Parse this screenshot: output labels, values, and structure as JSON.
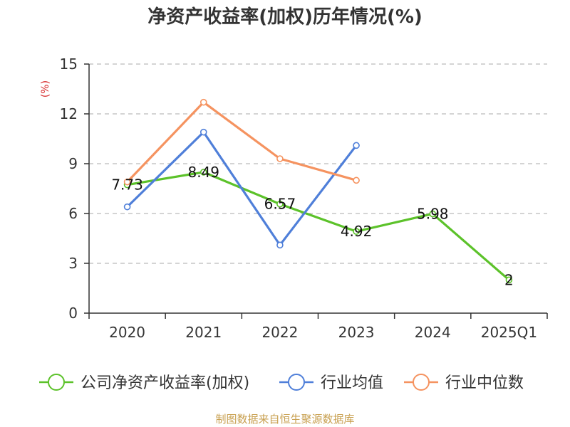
{
  "chart_data": {
    "type": "line",
    "title": "净资产收益率(加权)历年情况(%)",
    "ylabel": "(%)",
    "categories": [
      "2020",
      "2021",
      "2022",
      "2023",
      "2024",
      "2025Q1"
    ],
    "ylim": [
      0,
      15
    ],
    "yticks": [
      "0",
      "3",
      "6",
      "9",
      "12",
      "15"
    ],
    "grid": true,
    "legend_position": "bottom",
    "series": [
      {
        "name": "公司净资产收益率(加权)",
        "color": "#5cc22a",
        "values": [
          7.73,
          8.49,
          6.57,
          4.92,
          5.98,
          2
        ],
        "labels": [
          "7.73",
          "8.49",
          "6.57",
          "4.92",
          "5.98",
          "2"
        ]
      },
      {
        "name": "行业均值",
        "color": "#4f7fd9",
        "values": [
          6.4,
          10.9,
          4.1,
          10.1,
          null,
          null
        ]
      },
      {
        "name": "行业中位数",
        "color": "#f59360",
        "values": [
          7.9,
          12.7,
          9.3,
          8.0,
          null,
          null
        ]
      }
    ]
  },
  "source": "制图数据来自恒生聚源数据库",
  "colors": {
    "ylabel": "#d62728",
    "source": "#c8a050",
    "grid": "#bbbbbb",
    "axis": "#333333"
  }
}
